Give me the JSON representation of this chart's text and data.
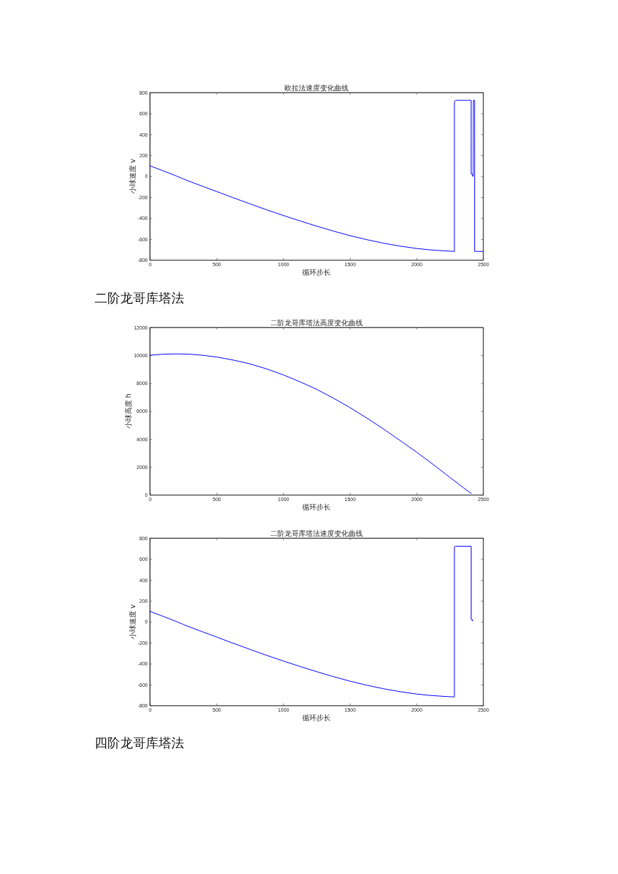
{
  "chart_data": [
    {
      "type": "line",
      "title": "欧拉法速度变化曲线",
      "xlabel": "循环步长",
      "ylabel": "小球速度 v",
      "color": "#0000ff",
      "x": [
        0,
        100,
        200,
        250,
        300,
        400,
        500,
        625,
        750,
        875,
        1000,
        1125,
        1250,
        1375,
        1500,
        1625,
        1750,
        1875,
        2000,
        2100,
        2200,
        2285,
        2285,
        2295,
        2410,
        2410,
        2418,
        2420,
        2425,
        2426,
        2437,
        2437,
        2500
      ],
      "values": [
        100,
        52,
        2,
        -25,
        -50,
        -98,
        -145,
        -205,
        -263,
        -320,
        -374,
        -426,
        -476,
        -523,
        -567,
        -605,
        -639,
        -667,
        -690,
        -703,
        -712,
        -718,
        715,
        725,
        725,
        25,
        25,
        0,
        0,
        725,
        725,
        -718,
        -718
      ],
      "xlim": [
        0,
        2500
      ],
      "ylim": [
        -800,
        800
      ],
      "xticks": [
        0,
        500,
        1000,
        1500,
        2000,
        2500
      ],
      "yticks": [
        -800,
        -600,
        -400,
        -200,
        0,
        200,
        400,
        600,
        800
      ]
    },
    {
      "type": "line",
      "title": "二阶龙哥库塔法高度变化曲线",
      "xlabel": "循环步长",
      "ylabel": "小球高度 h",
      "color": "#0000ff",
      "x": [
        0,
        100,
        200,
        300,
        400,
        500,
        625,
        750,
        875,
        1000,
        1125,
        1250,
        1375,
        1500,
        1625,
        1750,
        1875,
        2000,
        2125,
        2250,
        2350,
        2411
      ],
      "values": [
        10000,
        10080,
        10100,
        10080,
        10000,
        9880,
        9660,
        9390,
        9030,
        8600,
        8110,
        7570,
        6940,
        6260,
        5520,
        4740,
        3910,
        3070,
        2180,
        1260,
        530,
        100
      ],
      "xlim": [
        0,
        2500
      ],
      "ylim": [
        0,
        12000
      ],
      "xticks": [
        0,
        500,
        1000,
        1500,
        2000,
        2500
      ],
      "yticks": [
        0,
        2000,
        4000,
        6000,
        8000,
        10000,
        12000
      ],
      "annotations": [
        "二阶龙哥库塔法"
      ]
    },
    {
      "type": "line",
      "title": "二阶龙哥库塔法速度变化曲线",
      "xlabel": "循环步长",
      "ylabel": "小球速度 v",
      "color": "#0000ff",
      "x": [
        0,
        100,
        200,
        250,
        300,
        400,
        500,
        625,
        750,
        875,
        1000,
        1125,
        1250,
        1375,
        1500,
        1625,
        1750,
        1875,
        2000,
        2100,
        2200,
        2285,
        2285,
        2295,
        2410,
        2410,
        2418,
        2420,
        2421,
        2424
      ],
      "values": [
        100,
        52,
        2,
        -25,
        -50,
        -98,
        -145,
        -205,
        -263,
        -320,
        -374,
        -426,
        -476,
        -523,
        -567,
        -605,
        -639,
        -667,
        -690,
        -703,
        -712,
        -718,
        715,
        722,
        722,
        25,
        20,
        8,
        18,
        16
      ],
      "xlim": [
        0,
        2500
      ],
      "ylim": [
        -800,
        800
      ],
      "xticks": [
        0,
        500,
        1000,
        1500,
        2000,
        2500
      ],
      "yticks": [
        -800,
        -600,
        -400,
        -200,
        0,
        200,
        400,
        600,
        800
      ],
      "annotations": [
        "四阶龙哥库塔法"
      ]
    }
  ]
}
